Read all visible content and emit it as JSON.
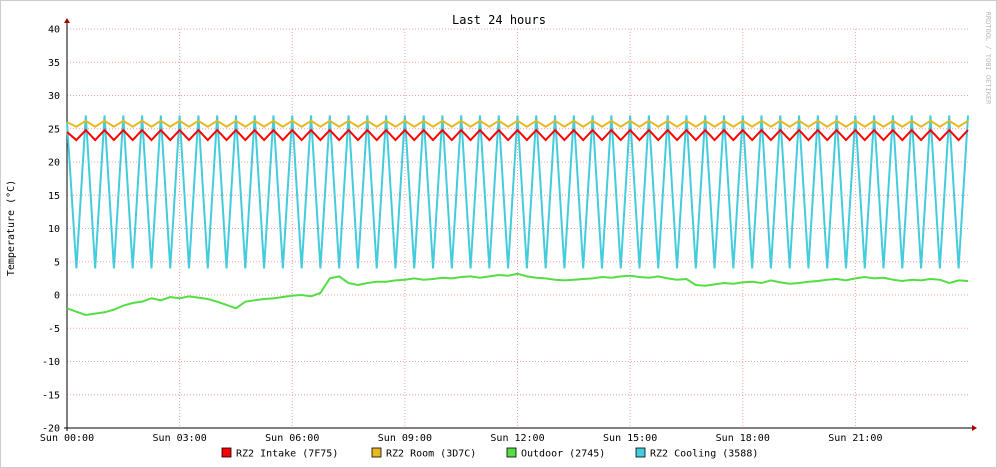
{
  "chart_data": {
    "type": "line",
    "title": "Last 24 hours",
    "y_label": "Temperature (°C)",
    "watermark": "RRDTOOL / TOBI OETIKER",
    "x": [
      0,
      0.25,
      0.5,
      0.75,
      1,
      1.25,
      1.5,
      1.75,
      2,
      2.25,
      2.5,
      2.75,
      3,
      3.25,
      3.5,
      3.75,
      4,
      4.25,
      4.5,
      4.75,
      5,
      5.25,
      5.5,
      5.75,
      6,
      6.25,
      6.5,
      6.75,
      7,
      7.25,
      7.5,
      7.75,
      8,
      8.25,
      8.5,
      8.75,
      9,
      9.25,
      9.5,
      9.75,
      10,
      10.25,
      10.5,
      10.75,
      11,
      11.25,
      11.5,
      11.75,
      12,
      12.25,
      12.5,
      12.75,
      13,
      13.25,
      13.5,
      13.75,
      14,
      14.25,
      14.5,
      14.75,
      15,
      15.25,
      15.5,
      15.75,
      16,
      16.25,
      16.5,
      16.75,
      17,
      17.25,
      17.5,
      17.75,
      18,
      18.25,
      18.5,
      18.75,
      19,
      19.25,
      19.5,
      19.75,
      20,
      20.25,
      20.5,
      20.75,
      21,
      21.25,
      21.5,
      21.75,
      22,
      22.25,
      22.5,
      22.75,
      23,
      23.25,
      23.5,
      23.75,
      24
    ],
    "series": [
      {
        "name": "RZ2 Intake (7F75)",
        "color": "#ff0000",
        "values": [
          24.5,
          23.3,
          24.8,
          23.3,
          24.8,
          23.3,
          24.8,
          23.3,
          24.8,
          23.3,
          24.8,
          23.3,
          24.8,
          23.3,
          24.8,
          23.3,
          24.8,
          23.3,
          24.8,
          23.3,
          24.8,
          23.3,
          24.8,
          23.3,
          24.8,
          23.3,
          24.8,
          23.3,
          24.8,
          23.3,
          24.8,
          23.3,
          24.8,
          23.3,
          24.8,
          23.3,
          24.8,
          23.3,
          24.8,
          23.3,
          24.8,
          23.3,
          24.8,
          23.3,
          24.8,
          23.3,
          24.8,
          23.3,
          24.8,
          23.3,
          24.8,
          23.3,
          24.8,
          23.3,
          24.8,
          23.3,
          24.8,
          23.3,
          24.8,
          23.3,
          24.8,
          23.3,
          24.8,
          23.3,
          24.8,
          23.3,
          24.8,
          23.3,
          24.8,
          23.3,
          24.8,
          23.3,
          24.8,
          23.3,
          24.8,
          23.3,
          24.8,
          23.3,
          24.8,
          23.3,
          24.8,
          23.3,
          24.8,
          23.3,
          24.8,
          23.3,
          24.8,
          23.3,
          24.8,
          23.3,
          24.8,
          23.3,
          24.8,
          23.3,
          24.8,
          23.3,
          24.8
        ]
      },
      {
        "name": "RZ2 Room (3D7C)",
        "color": "#e8b820",
        "values": [
          26,
          25.3,
          26.2,
          25.3,
          26.2,
          25.3,
          26.2,
          25.3,
          26.2,
          25.3,
          26.2,
          25.3,
          26.2,
          25.3,
          26.2,
          25.3,
          26.2,
          25.3,
          26.2,
          25.3,
          26.2,
          25.3,
          26.2,
          25.3,
          26.2,
          25.3,
          26.2,
          25.3,
          26.2,
          25.3,
          26.2,
          25.3,
          26.2,
          25.3,
          26.2,
          25.3,
          26.2,
          25.3,
          26.2,
          25.3,
          26.2,
          25.3,
          26.2,
          25.3,
          26.2,
          25.3,
          26.2,
          25.3,
          26.2,
          25.3,
          26.2,
          25.3,
          26.2,
          25.3,
          26.2,
          25.3,
          26.2,
          25.3,
          26.2,
          25.3,
          26.2,
          25.3,
          26.2,
          25.3,
          26.2,
          25.3,
          26.2,
          25.3,
          26.2,
          25.3,
          26.2,
          25.3,
          26.2,
          25.3,
          26.2,
          25.3,
          26.2,
          25.3,
          26.2,
          25.3,
          26.2,
          25.3,
          26.2,
          25.3,
          26.2,
          25.3,
          26.2,
          25.3,
          26.2,
          25.3,
          26.2,
          25.3,
          26.2,
          25.3,
          26.2,
          25.3,
          26.2
        ]
      },
      {
        "name": "Outdoor (2745)",
        "color": "#55dd44",
        "values": [
          -2,
          -2.5,
          -3,
          -2.8,
          -2.6,
          -2.2,
          -1.6,
          -1.2,
          -1,
          -0.5,
          -0.8,
          -0.3,
          -0.5,
          -0.2,
          -0.4,
          -0.6,
          -1,
          -1.5,
          -2,
          -1,
          -0.8,
          -0.6,
          -0.5,
          -0.3,
          -0.1,
          0,
          -0.2,
          0.3,
          2.5,
          2.8,
          1.8,
          1.5,
          1.8,
          2,
          2,
          2.2,
          2.3,
          2.5,
          2.3,
          2.4,
          2.6,
          2.5,
          2.7,
          2.8,
          2.6,
          2.8,
          3,
          2.9,
          3.2,
          2.8,
          2.6,
          2.5,
          2.3,
          2.2,
          2.3,
          2.4,
          2.5,
          2.7,
          2.6,
          2.8,
          2.9,
          2.7,
          2.6,
          2.8,
          2.5,
          2.3,
          2.4,
          1.5,
          1.4,
          1.6,
          1.8,
          1.7,
          1.9,
          2,
          1.8,
          2.2,
          1.9,
          1.7,
          1.8,
          2,
          2.1,
          2.3,
          2.4,
          2.2,
          2.5,
          2.7,
          2.5,
          2.6,
          2.3,
          2.1,
          2.3,
          2.2,
          2.4,
          2.3,
          1.8,
          2.2,
          2.1
        ]
      },
      {
        "name": "RZ2 Cooling (3588)",
        "color": "#44ccdd",
        "values": [
          26,
          4,
          27,
          4,
          27,
          4,
          27,
          4,
          27,
          4,
          27,
          4,
          27,
          4,
          27,
          4,
          27,
          4,
          27,
          4,
          27,
          4,
          27,
          4,
          27,
          4,
          27,
          4,
          27,
          4,
          27,
          4,
          27,
          4,
          27,
          4,
          27,
          4,
          27,
          4,
          27,
          4,
          27,
          4,
          27,
          4,
          27,
          4,
          27,
          4,
          27,
          4,
          27,
          4,
          27,
          4,
          27,
          4,
          27,
          4,
          27,
          4,
          27,
          4,
          27,
          4,
          27,
          4,
          27,
          4,
          27,
          4,
          27,
          4,
          27,
          4,
          27,
          4,
          27,
          4,
          27,
          4,
          27,
          4,
          27,
          4,
          27,
          4,
          27,
          4,
          27,
          4,
          27,
          4,
          27,
          4,
          27
        ]
      }
    ],
    "xlim": [
      0,
      24
    ],
    "xticks": [
      {
        "value": 0,
        "label": "Sun 00:00"
      },
      {
        "value": 3,
        "label": "Sun 03:00"
      },
      {
        "value": 6,
        "label": "Sun 06:00"
      },
      {
        "value": 9,
        "label": "Sun 09:00"
      },
      {
        "value": 12,
        "label": "Sun 12:00"
      },
      {
        "value": 15,
        "label": "Sun 15:00"
      },
      {
        "value": 18,
        "label": "Sun 18:00"
      },
      {
        "value": 21,
        "label": "Sun 21:00"
      }
    ],
    "ylim": [
      -20,
      40
    ],
    "yticks": [
      -20,
      -15,
      -10,
      -5,
      0,
      5,
      10,
      15,
      20,
      25,
      30,
      35,
      40
    ],
    "grid": true
  }
}
